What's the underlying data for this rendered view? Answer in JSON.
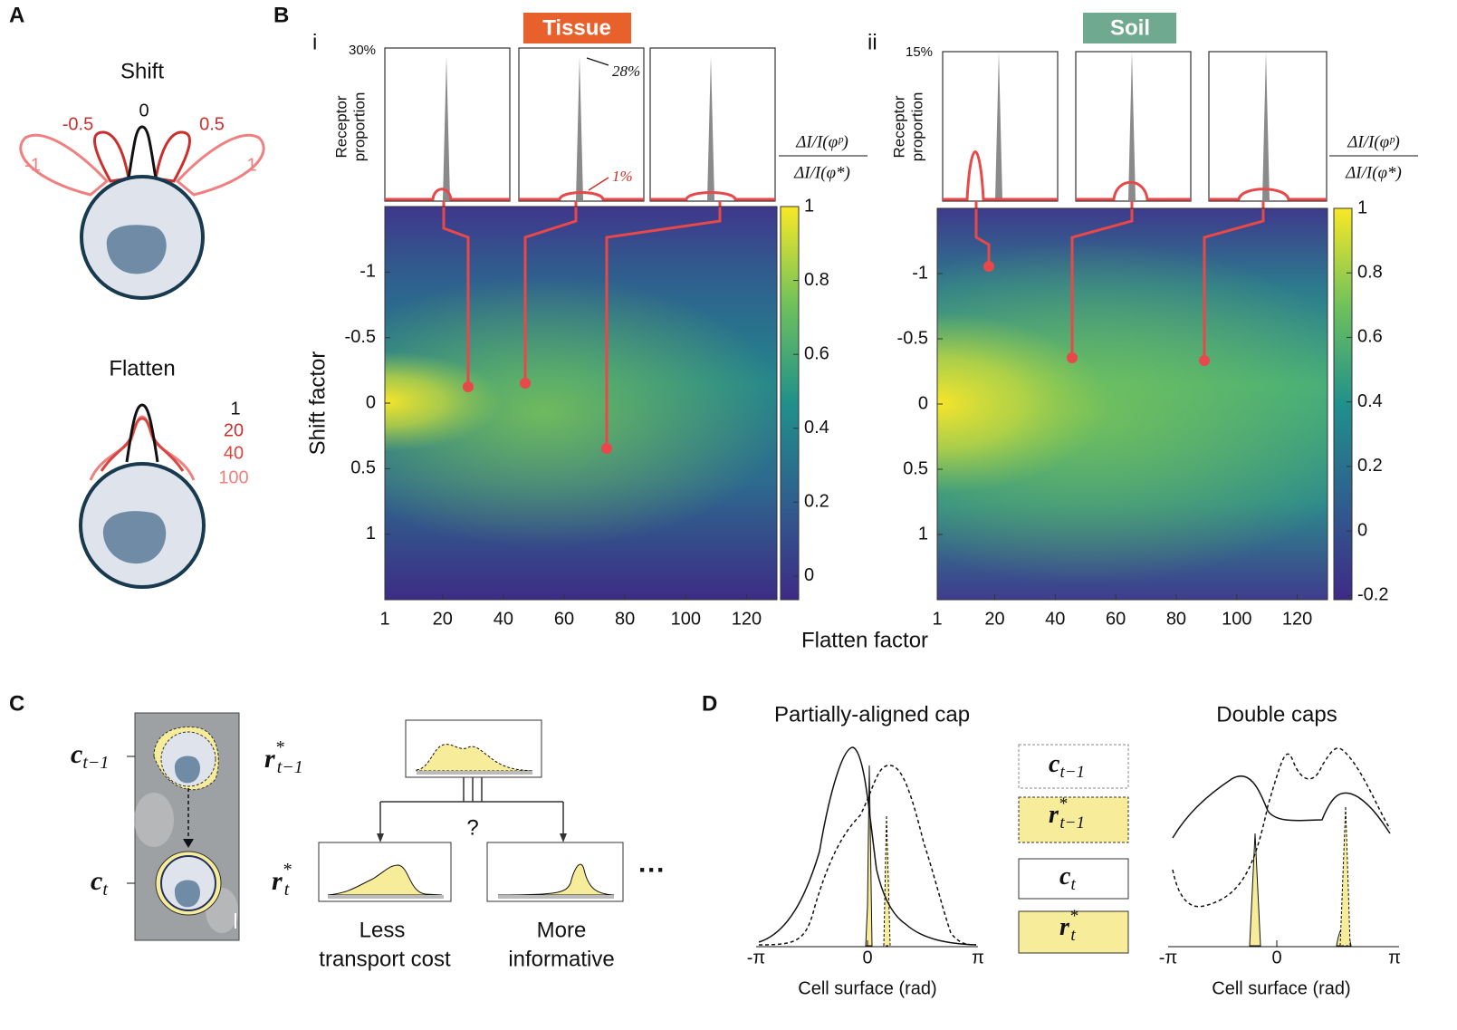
{
  "panels": {
    "A": {
      "label": "A",
      "shift": {
        "title": "Shift",
        "values": [
          "0",
          "-0.5",
          "0.5",
          "-1",
          "1"
        ]
      },
      "flatten": {
        "title": "Flatten",
        "values": [
          "1",
          "20",
          "40",
          "100"
        ]
      }
    },
    "B": {
      "label": "B",
      "xlabel": "Flatten factor",
      "ylabel": "Shift factor",
      "xlim": [
        1,
        130
      ],
      "ylim": [
        -1.5,
        1.5
      ],
      "xticks": [
        1,
        20,
        40,
        60,
        80,
        100,
        120
      ],
      "yticks": [
        -1,
        -0.5,
        0,
        0.5,
        1
      ],
      "inset_ylabel": [
        "Receptor",
        "proportion"
      ],
      "colorbar_label": {
        "numerator": "ΔI/I(φᵖ)",
        "denominator": "ΔI/I(φ*)"
      },
      "tissue": {
        "roman": "i",
        "tag": "Tissue",
        "inset_top": "30%",
        "peak_note": "28%",
        "cap_note": "1%",
        "clim": [
          -0.064,
          1
        ],
        "cticks": [
          0,
          0.2,
          0.4,
          0.6,
          0.8,
          1
        ]
      },
      "soil": {
        "roman": "ii",
        "tag": "Soil",
        "inset_top": "15%",
        "clim": [
          -0.213,
          1
        ],
        "cticks": [
          -0.2,
          0,
          0.2,
          0.4,
          0.6,
          0.8,
          1
        ]
      }
    },
    "C": {
      "label": "C",
      "c_prev": {
        "base": "c",
        "sub": "t−1"
      },
      "c_now": {
        "base": "c",
        "sub": "t"
      },
      "r_prev": {
        "base": "r",
        "sup": "*",
        "sub": "t−1"
      },
      "r_now": {
        "base": "r",
        "sup": "*",
        "sub": "t"
      },
      "question": "?",
      "more": "···",
      "left_caption": [
        "Less",
        "transport cost"
      ],
      "right_caption": [
        "More",
        "informative"
      ]
    },
    "D": {
      "label": "D",
      "left_title": "Partially-aligned cap",
      "right_title": "Double caps",
      "xtick_labels": [
        "-π",
        "0",
        "π"
      ],
      "xlabel": "Cell surface (rad)"
    }
  }
}
